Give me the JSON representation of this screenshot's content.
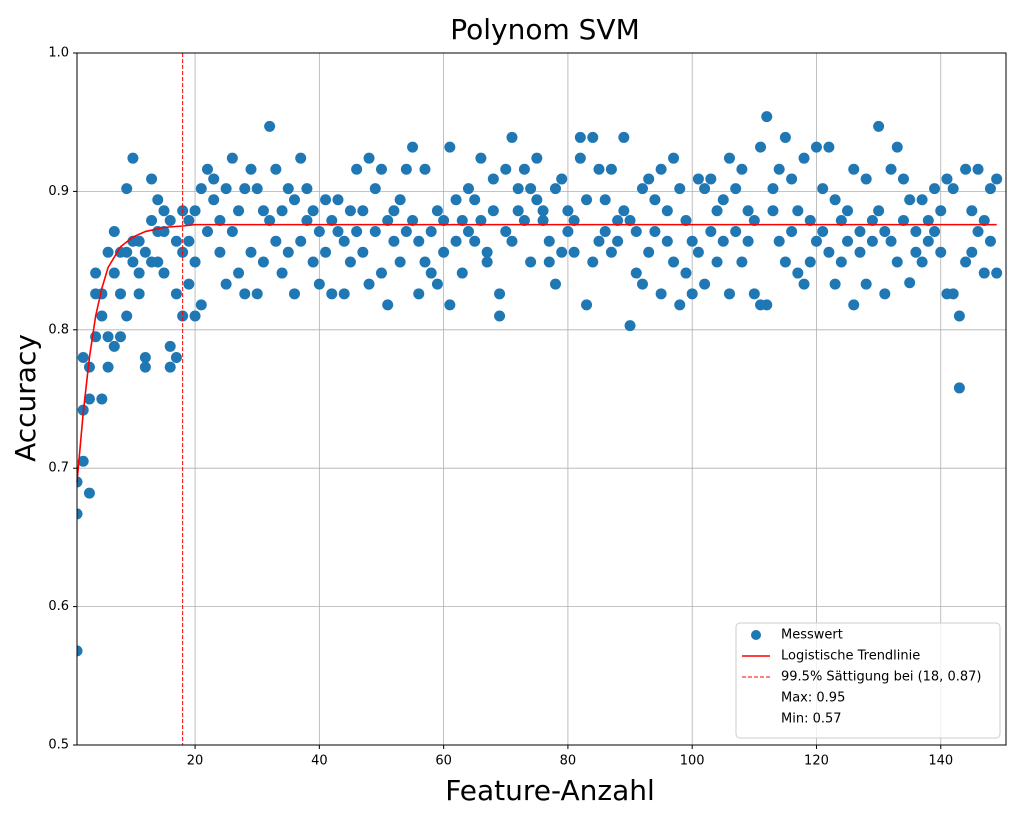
{
  "chart_data": {
    "type": "scatter",
    "title": "Polynom SVM",
    "xlabel": "Feature-Anzahl",
    "ylabel": "Accuracy",
    "xlim": [
      1,
      150.5
    ],
    "ylim": [
      0.5,
      1.0
    ],
    "xticks": [
      20,
      40,
      60,
      80,
      100,
      120,
      140
    ],
    "yticks": [
      0.5,
      0.6,
      0.7,
      0.8,
      0.9,
      {
        "value": 1.0,
        "label": "1.0"
      }
    ],
    "grid": true,
    "legend": "lower right",
    "series": [
      {
        "name": "Messwert",
        "color": "#1f77b4",
        "style": "points",
        "x": [
          1,
          1,
          1,
          2,
          2,
          2,
          3,
          3,
          3,
          4,
          4,
          4,
          5,
          5,
          5,
          6,
          6,
          6,
          7,
          7,
          7,
          8,
          8,
          8,
          9,
          9,
          9,
          10,
          10,
          10,
          11,
          11,
          11,
          12,
          12,
          12,
          13,
          13,
          13,
          14,
          14,
          14,
          15,
          15,
          15,
          16,
          16,
          16,
          17,
          17,
          17,
          18,
          18,
          18,
          19,
          19,
          19,
          20,
          20,
          20,
          21,
          21,
          22,
          22,
          23,
          23,
          24,
          24,
          25,
          25,
          26,
          26,
          27,
          27,
          28,
          28,
          29,
          29,
          30,
          30,
          31,
          31,
          32,
          32,
          33,
          33,
          34,
          34,
          35,
          35,
          36,
          36,
          37,
          37,
          38,
          38,
          39,
          39,
          40,
          40,
          41,
          41,
          42,
          42,
          43,
          43,
          44,
          44,
          45,
          45,
          46,
          46,
          47,
          47,
          48,
          48,
          49,
          49,
          50,
          50,
          51,
          51,
          52,
          52,
          53,
          53,
          54,
          54,
          55,
          55,
          56,
          56,
          57,
          57,
          58,
          58,
          59,
          59,
          60,
          60,
          61,
          61,
          62,
          62,
          63,
          63,
          64,
          64,
          65,
          65,
          66,
          66,
          67,
          67,
          68,
          68,
          69,
          69,
          70,
          70,
          71,
          71,
          72,
          72,
          73,
          73,
          74,
          74,
          75,
          75,
          76,
          76,
          77,
          77,
          78,
          78,
          79,
          79,
          80,
          80,
          81,
          81,
          82,
          82,
          83,
          83,
          84,
          84,
          85,
          85,
          86,
          86,
          87,
          87,
          88,
          88,
          89,
          89,
          90,
          90,
          91,
          91,
          92,
          92,
          93,
          93,
          94,
          94,
          95,
          95,
          96,
          96,
          97,
          97,
          98,
          98,
          99,
          99,
          100,
          100,
          101,
          101,
          102,
          102,
          103,
          103,
          104,
          104,
          105,
          105,
          106,
          106,
          107,
          107,
          108,
          108,
          109,
          109,
          110,
          110,
          111,
          111,
          112,
          112,
          113,
          113,
          114,
          114,
          115,
          115,
          116,
          116,
          117,
          117,
          118,
          118,
          119,
          119,
          120,
          120,
          121,
          121,
          122,
          122,
          123,
          123,
          124,
          124,
          125,
          125,
          126,
          126,
          127,
          127,
          128,
          128,
          129,
          129,
          130,
          130,
          131,
          131,
          132,
          132,
          133,
          133,
          134,
          134,
          135,
          135,
          136,
          136,
          137,
          137,
          138,
          138,
          139,
          139,
          140,
          140,
          141,
          141,
          142,
          142,
          143,
          143,
          144,
          144,
          145,
          145,
          146,
          146,
          147,
          147,
          148,
          148,
          149,
          149
        ],
        "values": [
          0.568,
          0.69,
          0.667,
          0.742,
          0.705,
          0.78,
          0.682,
          0.773,
          0.75,
          0.826,
          0.795,
          0.841,
          0.75,
          0.81,
          0.826,
          0.773,
          0.856,
          0.795,
          0.788,
          0.871,
          0.841,
          0.826,
          0.856,
          0.795,
          0.902,
          0.81,
          0.856,
          0.924,
          0.864,
          0.849,
          0.826,
          0.841,
          0.864,
          0.78,
          0.773,
          0.856,
          0.909,
          0.879,
          0.849,
          0.894,
          0.871,
          0.849,
          0.886,
          0.841,
          0.871,
          0.773,
          0.788,
          0.879,
          0.826,
          0.864,
          0.78,
          0.81,
          0.886,
          0.856,
          0.879,
          0.833,
          0.864,
          0.81,
          0.886,
          0.849,
          0.902,
          0.818,
          0.916,
          0.871,
          0.909,
          0.894,
          0.856,
          0.879,
          0.902,
          0.833,
          0.924,
          0.871,
          0.886,
          0.841,
          0.826,
          0.902,
          0.916,
          0.856,
          0.902,
          0.826,
          0.886,
          0.849,
          0.947,
          0.879,
          0.864,
          0.916,
          0.841,
          0.886,
          0.902,
          0.856,
          0.826,
          0.894,
          0.924,
          0.864,
          0.879,
          0.902,
          0.849,
          0.886,
          0.833,
          0.871,
          0.894,
          0.856,
          0.826,
          0.879,
          0.871,
          0.894,
          0.826,
          0.864,
          0.886,
          0.849,
          0.916,
          0.871,
          0.856,
          0.886,
          0.924,
          0.833,
          0.902,
          0.871,
          0.841,
          0.916,
          0.818,
          0.879,
          0.864,
          0.886,
          0.849,
          0.894,
          0.916,
          0.871,
          0.932,
          0.879,
          0.826,
          0.864,
          0.916,
          0.849,
          0.841,
          0.871,
          0.886,
          0.833,
          0.856,
          0.879,
          0.932,
          0.818,
          0.864,
          0.894,
          0.841,
          0.879,
          0.902,
          0.871,
          0.894,
          0.864,
          0.924,
          0.879,
          0.849,
          0.856,
          0.909,
          0.886,
          0.81,
          0.826,
          0.916,
          0.871,
          0.939,
          0.864,
          0.886,
          0.902,
          0.916,
          0.879,
          0.849,
          0.902,
          0.924,
          0.894,
          0.886,
          0.879,
          0.864,
          0.849,
          0.902,
          0.833,
          0.909,
          0.856,
          0.886,
          0.871,
          0.879,
          0.856,
          0.939,
          0.924,
          0.818,
          0.894,
          0.939,
          0.849,
          0.916,
          0.864,
          0.894,
          0.871,
          0.916,
          0.856,
          0.864,
          0.879,
          0.939,
          0.886,
          0.803,
          0.879,
          0.871,
          0.841,
          0.902,
          0.833,
          0.909,
          0.856,
          0.871,
          0.894,
          0.826,
          0.916,
          0.864,
          0.886,
          0.924,
          0.849,
          0.818,
          0.902,
          0.841,
          0.879,
          0.826,
          0.864,
          0.909,
          0.856,
          0.902,
          0.833,
          0.871,
          0.909,
          0.849,
          0.886,
          0.894,
          0.864,
          0.924,
          0.826,
          0.902,
          0.871,
          0.849,
          0.916,
          0.886,
          0.864,
          0.826,
          0.879,
          0.932,
          0.818,
          0.954,
          0.818,
          0.886,
          0.902,
          0.864,
          0.916,
          0.939,
          0.849,
          0.909,
          0.871,
          0.841,
          0.886,
          0.924,
          0.833,
          0.879,
          0.849,
          0.932,
          0.864,
          0.902,
          0.871,
          0.932,
          0.856,
          0.894,
          0.833,
          0.879,
          0.849,
          0.864,
          0.886,
          0.916,
          0.818,
          0.856,
          0.871,
          0.909,
          0.833,
          0.879,
          0.864,
          0.947,
          0.886,
          0.826,
          0.871,
          0.916,
          0.864,
          0.932,
          0.849,
          0.909,
          0.879,
          0.834,
          0.894,
          0.871,
          0.856,
          0.894,
          0.849,
          0.864,
          0.879,
          0.902,
          0.871,
          0.886,
          0.856,
          0.909,
          0.826,
          0.826,
          0.902,
          0.758,
          0.81,
          0.916,
          0.849,
          0.886,
          0.856,
          0.871,
          0.916,
          0.841,
          0.879,
          0.902,
          0.864,
          0.909,
          0.841
        ]
      },
      {
        "name": "Logistische Trendlinie",
        "color": "#ff0000",
        "style": "line",
        "x": [
          1,
          2,
          3,
          4,
          5,
          6,
          8,
          10,
          12,
          15,
          18,
          20,
          30,
          50,
          100,
          149
        ],
        "values": [
          0.69,
          0.74,
          0.78,
          0.81,
          0.83,
          0.845,
          0.86,
          0.867,
          0.871,
          0.874,
          0.875,
          0.876,
          0.876,
          0.876,
          0.876,
          0.876
        ]
      },
      {
        "name": "99.5% Sättigung bei (18, 0.87)",
        "color": "#ff0000",
        "style": "vline",
        "x": [
          18
        ]
      }
    ],
    "legend_notes": [
      "Max: 0.95",
      "Min: 0.57"
    ]
  }
}
